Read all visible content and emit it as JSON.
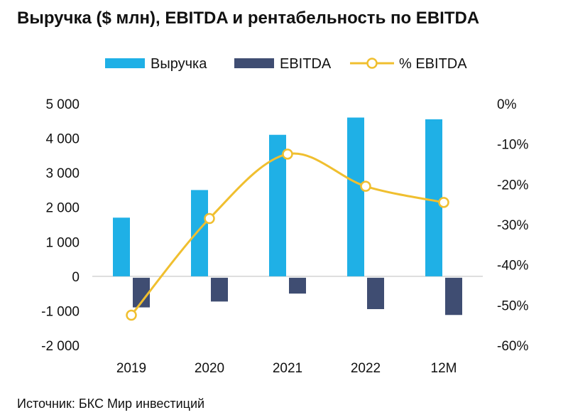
{
  "title": "Выручка ($ млн), EBITDA и рентабельность по EBITDA",
  "source": "Источник: БКС Мир инвестиций",
  "colors": {
    "revenue": "#1fb0e6",
    "ebitda": "#3f4d72",
    "margin": "#f0bf2f",
    "axis_line": "#bdbdbd"
  },
  "chart_data": {
    "type": "bar",
    "title": "Выручка ($ млн), EBITDA и рентабельность по EBITDA",
    "categories": [
      "2019",
      "2020",
      "2021",
      "2022",
      "12M"
    ],
    "series": [
      {
        "name": "Выручка",
        "type": "bar",
        "axis": "left",
        "values": [
          1700,
          2500,
          4100,
          4600,
          4550
        ]
      },
      {
        "name": "EBITDA",
        "type": "bar",
        "axis": "left",
        "values": [
          -900,
          -730,
          -500,
          -950,
          -1120
        ]
      },
      {
        "name": "% EBITDA",
        "type": "line",
        "axis": "right",
        "smooth": true,
        "markers": "circle",
        "values": [
          -52.5,
          -28.5,
          -12.5,
          -20.5,
          -24.5
        ]
      }
    ],
    "y_left": {
      "min": -2000,
      "max": 5000,
      "ticks": [
        5000,
        4000,
        3000,
        2000,
        1000,
        0,
        -1000,
        -2000
      ],
      "tick_labels": [
        "5 000",
        "4 000",
        "3 000",
        "2 000",
        "1 000",
        "0",
        "-1 000",
        "-2 000"
      ]
    },
    "y_right": {
      "min": -60,
      "max": 0,
      "ticks": [
        0,
        -10,
        -20,
        -30,
        -40,
        -50,
        -60
      ],
      "tick_labels": [
        "0%",
        "-10%",
        "-20%",
        "-30%",
        "-40%",
        "-50%",
        "-60%"
      ]
    },
    "legend": {
      "position": "top",
      "entries": [
        "Выручка",
        "EBITDA",
        "% EBITDA"
      ]
    },
    "grid": false
  }
}
